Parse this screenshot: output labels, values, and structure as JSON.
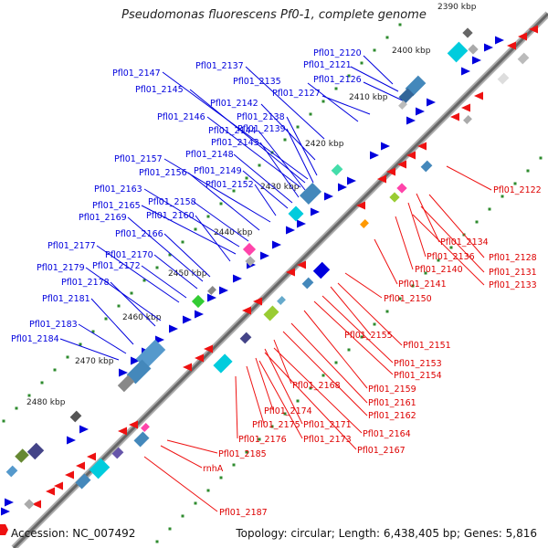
{
  "title": "Pseudomonas fluorescens Pf0-1, complete genome",
  "footer": {
    "accession_label": "Accession: NC_007492",
    "summary": "Topology: circular; Length: 6,438,405 bp; Genes: 5,816"
  },
  "colors": {
    "forward": "#0000dd",
    "reverse": "#ee1111",
    "backbone": "#888888",
    "ticks": "#2e8b2e"
  },
  "scale_labels": [
    "2390 kbp",
    "2400 kbp",
    "2410 kbp",
    "2420 kbp",
    "2430 kbp",
    "2440 kbp",
    "2450 kbp",
    "2460 kbp",
    "2470 kbp",
    "2480 kbp"
  ],
  "forward_labels": [
    "Pfl01_2120",
    "Pfl01_2121",
    "Pfl01_2126",
    "Pfl01_2127",
    "Pfl01_2135",
    "Pfl01_2137",
    "Pfl01_2147",
    "Pfl01_2145",
    "Pfl01_2142",
    "Pfl01_2146",
    "Pfl01_2138",
    "Pfl01_2139",
    "Pfl01_2144",
    "Pfl01_2143",
    "Pfl01_2148",
    "Pfl01_2157",
    "Pfl01_2149",
    "Pfl01_2156",
    "Pfl01_2152",
    "Pfl01_2163",
    "Pfl01_2158",
    "Pfl01_2165",
    "Pfl01_2160",
    "Pfl01_2169",
    "Pfl01_2166",
    "Pfl01_2177",
    "Pfl01_2170",
    "Pfl01_2179",
    "Pfl01_2172",
    "Pfl01_2178",
    "Pfl01_2181",
    "Pfl01_2183",
    "Pfl01_2184"
  ],
  "reverse_labels": [
    "Pfl01_2122",
    "Pfl01_2134",
    "Pfl01_2128",
    "Pfl01_2136",
    "Pfl01_2131",
    "Pfl01_2140",
    "Pfl01_2133",
    "Pfl01_2141",
    "Pfl01_2150",
    "Pfl01_2155",
    "Pfl01_2151",
    "Pfl01_2153",
    "Pfl01_2154",
    "Pfl01_2159",
    "Pfl01_2168",
    "Pfl01_2161",
    "Pfl01_2162",
    "Pfl01_2174",
    "Pfl01_2175",
    "Pfl01_2171",
    "Pfl01_2164",
    "Pfl01_2176",
    "Pfl01_2173",
    "Pfl01_2167",
    "Pfl01_2185",
    "rnhA",
    "Pfl01_2187"
  ]
}
